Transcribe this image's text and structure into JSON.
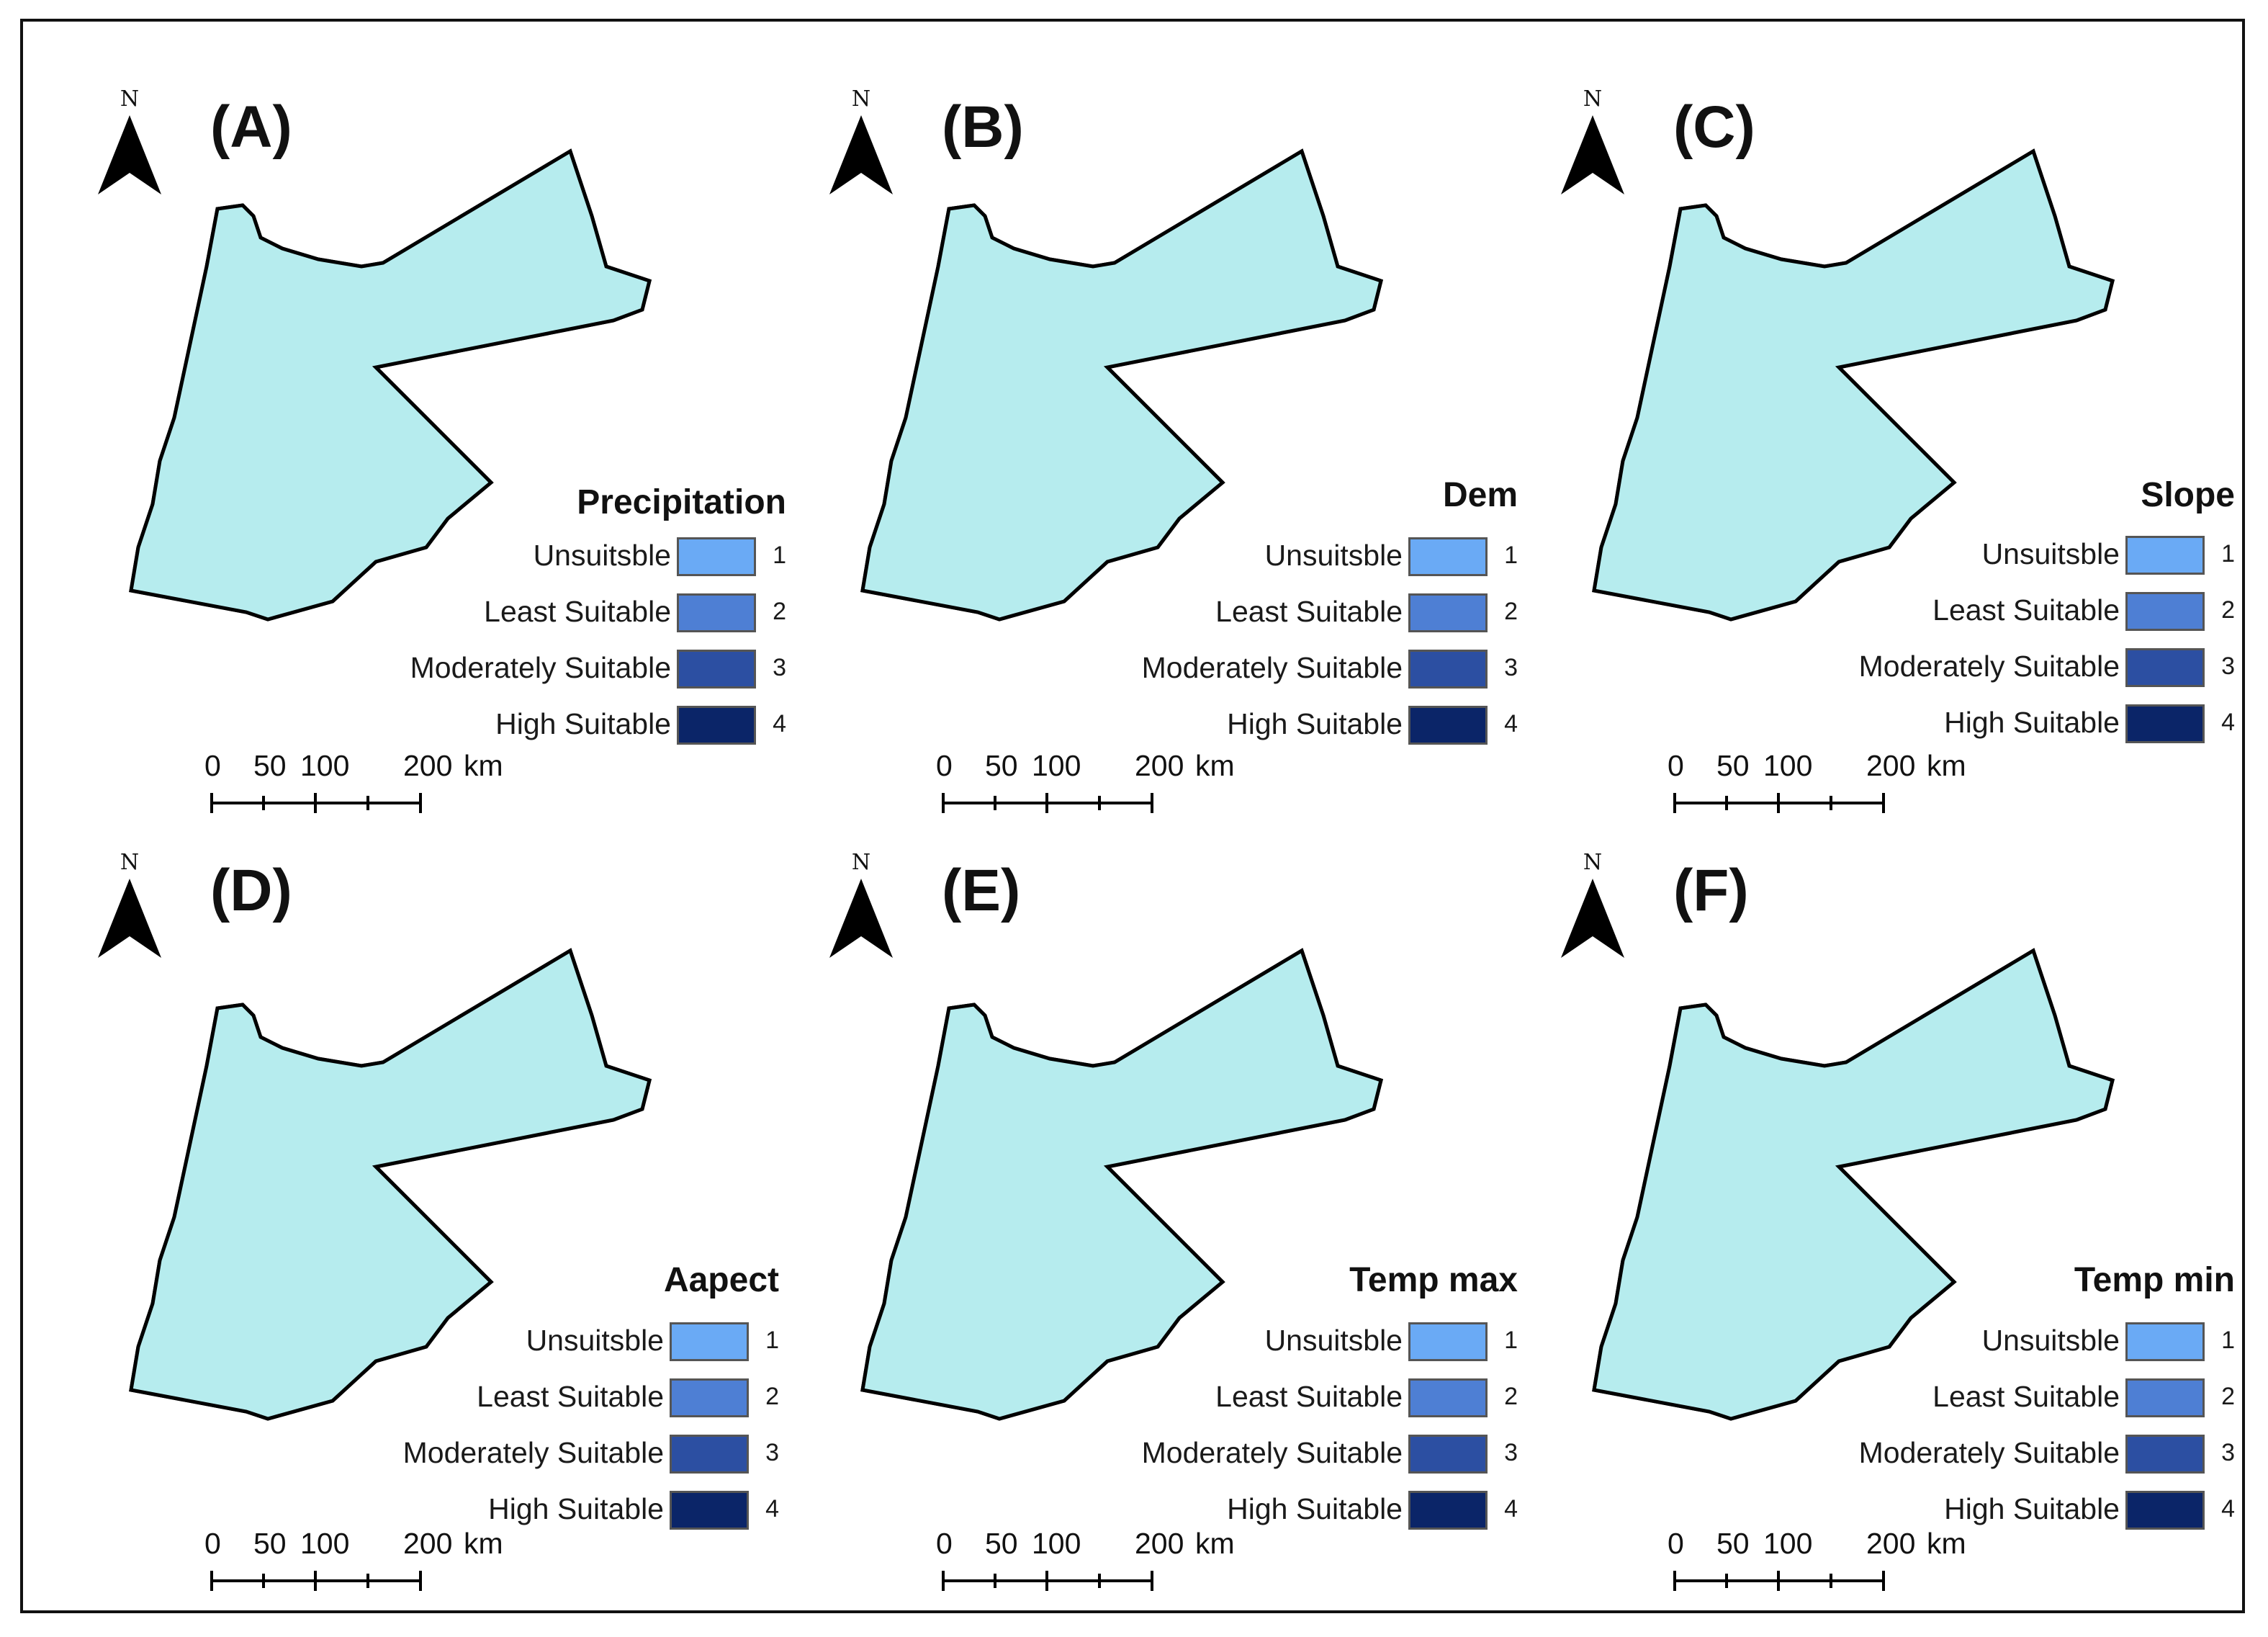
{
  "colors": {
    "unsuitable": "#6aaaf5",
    "least": "#4e7fd4",
    "moderate": "#2c4fa2",
    "high": "#0b2568",
    "pale": "#b6ecee",
    "outline": "#000000"
  },
  "legend_classes": [
    {
      "label": "Unsuitsble",
      "value": "1",
      "color": "#6aaaf5"
    },
    {
      "label": "Least Suitable",
      "value": "2",
      "color": "#4e7fd4"
    },
    {
      "label": "Moderately Suitable",
      "value": "3",
      "color": "#2c4fa2"
    },
    {
      "label": "High Suitable",
      "value": "4",
      "color": "#0b2568"
    }
  ],
  "north_arrow": {
    "letter": "N",
    "icon": "north-arrow-icon"
  },
  "scale_bar": {
    "labels": [
      "0",
      "50",
      "100",
      "200"
    ],
    "unit": "km"
  },
  "panels": [
    {
      "id": "A",
      "label": "(A)",
      "title": "Precipitation"
    },
    {
      "id": "B",
      "label": "(B)",
      "title": "Dem"
    },
    {
      "id": "C",
      "label": "(C)",
      "title": "Slope"
    },
    {
      "id": "D",
      "label": "(D)",
      "title": "Aapect"
    },
    {
      "id": "E",
      "label": "(E)",
      "title": "Temp max"
    },
    {
      "id": "F",
      "label": "(F)",
      "title": "Temp min"
    }
  ]
}
